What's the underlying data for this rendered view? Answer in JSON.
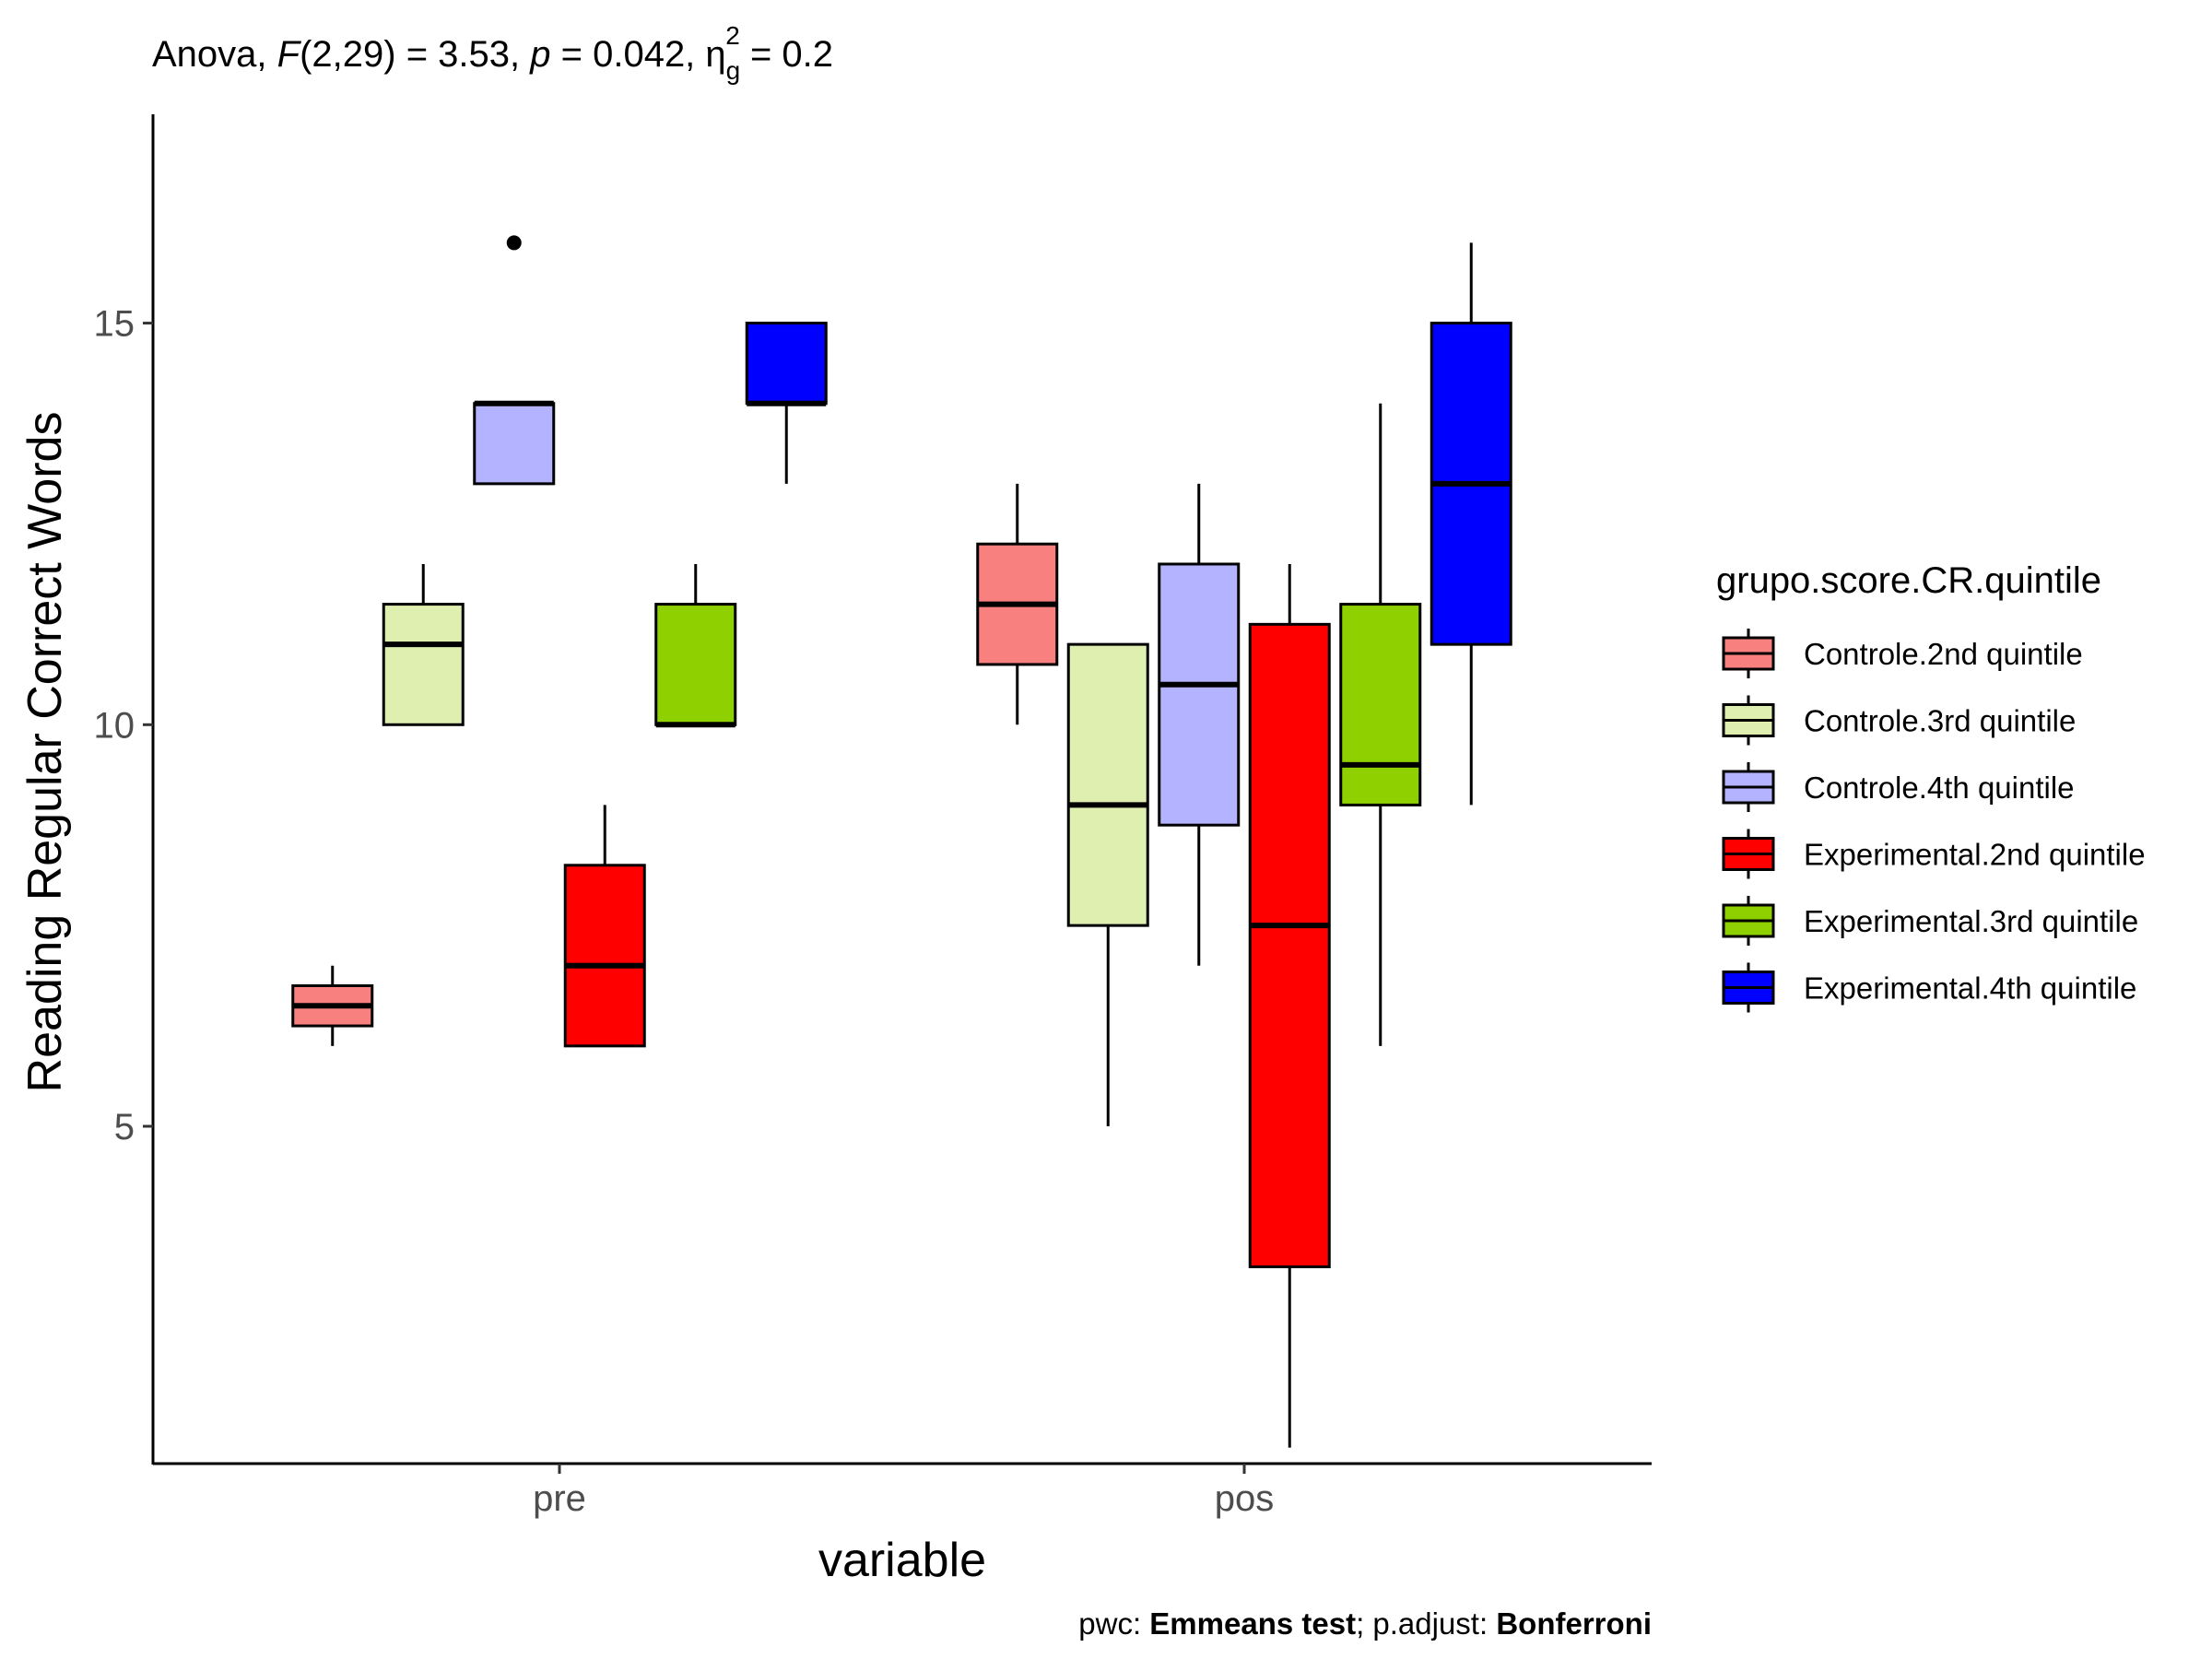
{
  "chart_data": {
    "type": "box",
    "title_parts": {
      "prefix": "Anova, ",
      "f_symbol": "F",
      "f_df": "(2,29) = 3.53, ",
      "p_symbol": "p",
      "p_value": " = 0.042, ",
      "eta_symbol": "η",
      "eta_sub": "g",
      "eta_sup": "2",
      "eta_value": " = 0.2"
    },
    "caption_parts": {
      "pwc_label": "pwc: ",
      "pwc_value": "Emmeans test",
      "sep": "; p.adjust: ",
      "adjust_value": "Bonferroni"
    },
    "xlabel": "variable",
    "ylabel": "Reading Regular Correct Words",
    "ylim": [
      0.8,
      17.6
    ],
    "y_ticks": [
      5,
      10,
      15
    ],
    "grid": false,
    "legend_position": "right",
    "categories": [
      "pre",
      "pos"
    ],
    "legend_title": "grupo.score.CR.quintile",
    "series": [
      {
        "name": "Controle.2nd quintile",
        "color": "#F8807E",
        "boxes": [
          {
            "category": "pre",
            "lower_whisker": 6,
            "q1": 6.25,
            "median": 6.5,
            "q3": 6.75,
            "upper_whisker": 7,
            "outliers": []
          },
          {
            "category": "pos",
            "lower_whisker": 10,
            "q1": 10.75,
            "median": 11.5,
            "q3": 12.25,
            "upper_whisker": 13,
            "outliers": []
          }
        ]
      },
      {
        "name": "Controle.3rd quintile",
        "color": "#DEEFB0",
        "boxes": [
          {
            "category": "pre",
            "lower_whisker": 10,
            "q1": 10,
            "median": 11,
            "q3": 11.5,
            "upper_whisker": 12,
            "outliers": []
          },
          {
            "category": "pos",
            "lower_whisker": 5,
            "q1": 7.5,
            "median": 9,
            "q3": 11,
            "upper_whisker": 11,
            "outliers": []
          }
        ]
      },
      {
        "name": "Controle.4th quintile",
        "color": "#B3B3FF",
        "boxes": [
          {
            "category": "pre",
            "lower_whisker": 13,
            "q1": 13,
            "median": 14,
            "q3": 14,
            "upper_whisker": 14,
            "outliers": [
              16
            ]
          },
          {
            "category": "pos",
            "lower_whisker": 7,
            "q1": 8.75,
            "median": 10.5,
            "q3": 12,
            "upper_whisker": 13,
            "outliers": []
          }
        ]
      },
      {
        "name": "Experimental.2nd quintile",
        "color": "#FF0000",
        "boxes": [
          {
            "category": "pre",
            "lower_whisker": 6,
            "q1": 6,
            "median": 7,
            "q3": 8.25,
            "upper_whisker": 9,
            "outliers": []
          },
          {
            "category": "pos",
            "lower_whisker": 1,
            "q1": 3.25,
            "median": 7.5,
            "q3": 11.25,
            "upper_whisker": 12,
            "outliers": []
          }
        ]
      },
      {
        "name": "Experimental.3rd quintile",
        "color": "#8FD100",
        "boxes": [
          {
            "category": "pre",
            "lower_whisker": 10,
            "q1": 10,
            "median": 10,
            "q3": 11.5,
            "upper_whisker": 12,
            "outliers": []
          },
          {
            "category": "pos",
            "lower_whisker": 6,
            "q1": 9,
            "median": 9.5,
            "q3": 11.5,
            "upper_whisker": 14,
            "outliers": []
          }
        ]
      },
      {
        "name": "Experimental.4th quintile",
        "color": "#0000FF",
        "boxes": [
          {
            "category": "pre",
            "lower_whisker": 13,
            "q1": 14,
            "median": 14,
            "q3": 15,
            "upper_whisker": 15,
            "outliers": []
          },
          {
            "category": "pos",
            "lower_whisker": 9,
            "q1": 11,
            "median": 13,
            "q3": 15,
            "upper_whisker": 16,
            "outliers": []
          }
        ]
      }
    ]
  }
}
